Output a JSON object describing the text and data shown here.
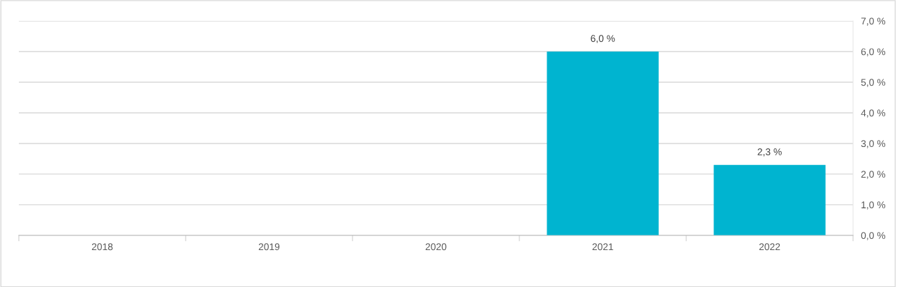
{
  "chart_data": {
    "type": "bar",
    "categories": [
      "2018",
      "2019",
      "2020",
      "2021",
      "2022"
    ],
    "series": [
      {
        "color": "#00b4d0",
        "values": [
          null,
          null,
          null,
          6.0,
          2.3
        ]
      }
    ],
    "value_labels": [
      null,
      null,
      null,
      "6,0 %",
      "2,3 %"
    ],
    "ylim": [
      0,
      7
    ],
    "yticks": [
      {
        "value": 0,
        "label": "0,0 %"
      },
      {
        "value": 1,
        "label": "1,0 %"
      },
      {
        "value": 2,
        "label": "2,0 %"
      },
      {
        "value": 3,
        "label": "3,0 %"
      },
      {
        "value": 4,
        "label": "4,0 %"
      },
      {
        "value": 5,
        "label": "5,0 %"
      },
      {
        "value": 6,
        "label": "6,0 %"
      },
      {
        "value": 7,
        "label": "7,0 %"
      }
    ],
    "grid": "y"
  }
}
